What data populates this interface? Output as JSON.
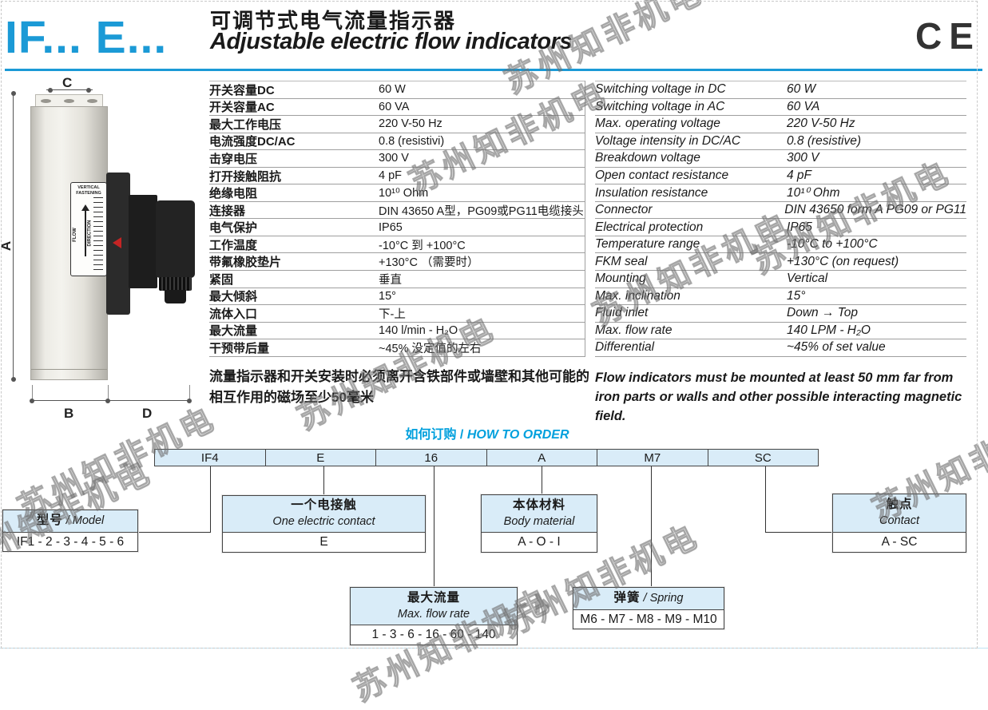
{
  "header": {
    "logo": "IF... E...",
    "title_cn": "可调节式电气流量指示器",
    "title_en": "Adjustable electric flow indicators",
    "ce": "CE"
  },
  "colors": {
    "accent_blue": "#1b9ad6",
    "order_title_blue": "#00a0dd",
    "box_fill_blue": "#d9ecf8"
  },
  "drawing": {
    "label_line1": "VERTICAL",
    "label_line2": "FASTENING",
    "flow": "FLOW",
    "direction": "DIRECTION",
    "dim_a": "A",
    "dim_b": "B",
    "dim_c": "C",
    "dim_d": "D"
  },
  "specs_cn": {
    "rows": [
      {
        "label": "开关容量DC",
        "value": "60 W"
      },
      {
        "label": "开关容量AC",
        "value": "60 VA"
      },
      {
        "label": "最大工作电压",
        "value": "220 V-50 Hz"
      },
      {
        "label": "电流强度DC/AC",
        "value": "0.8 (resistivi)"
      },
      {
        "label": "击穿电压",
        "value": "300 V"
      },
      {
        "label": "打开接触阻抗",
        "value": "4 pF"
      },
      {
        "label": "绝缘电阻",
        "value": "10¹⁰ Ohm"
      },
      {
        "label": "连接器",
        "value": "DIN 43650 A型，PG09或PG11电缆接头"
      },
      {
        "label": "电气保护",
        "value": "IP65"
      },
      {
        "label": "工作温度",
        "value": "-10°C 到 +100°C"
      },
      {
        "label": "带氟橡胶垫片",
        "value": "+130°C （需要时）"
      },
      {
        "label": "紧固",
        "value": "垂直"
      },
      {
        "label": "最大倾斜",
        "value": "15°"
      },
      {
        "label": "流体入口",
        "value": "下-上"
      },
      {
        "label": "最大流量",
        "value": "140 l/min - H₂O"
      },
      {
        "label": "干预带后量",
        "value": "~45% 没定值的左右"
      }
    ]
  },
  "specs_en": {
    "rows": [
      {
        "label": "Switching voltage in DC",
        "value": "60 W"
      },
      {
        "label": "Switching voltage in AC",
        "value": "60 VA"
      },
      {
        "label": "Max. operating voltage",
        "value": "220 V-50 Hz"
      },
      {
        "label": "Voltage intensity in DC/AC",
        "value": "0.8 (resistive)"
      },
      {
        "label": "Breakdown voltage",
        "value": "300 V"
      },
      {
        "label": "Open contact resistance",
        "value": "4 pF"
      },
      {
        "label": "Insulation resistance",
        "value": "10¹⁰ Ohm"
      },
      {
        "label": "Connector",
        "value": "DIN 43650 form A PG09 or PG11"
      },
      {
        "label": "Electrical protection",
        "value": "IP65"
      },
      {
        "label": "Temperature range",
        "value": "-10°C to +100°C"
      },
      {
        "label": "FKM seal",
        "value": "+130°C (on request)"
      },
      {
        "label": "Mounting",
        "value": "Vertical"
      },
      {
        "label": "Max. inclination",
        "value": "15°"
      },
      {
        "label": "Fluid inlet",
        "value": "Down → Top"
      },
      {
        "label": "Max. flow rate",
        "value": "140 LPM - H₂O"
      },
      {
        "label": "Differential",
        "value": "~45% of set value"
      }
    ]
  },
  "note_cn": "流量指示器和开关安装时必须离开含铁部件或墙壁和其他可能的相互作用的磁场至少50毫米",
  "note_en": "Flow indicators must be mounted at least 50 mm far from iron parts or walls and other possible interacting magnetic field.",
  "order": {
    "title_cn": "如何订购",
    "sep": " / ",
    "title_en": "HOW TO ORDER",
    "code_cells": [
      "IF4",
      "E",
      "16",
      "A",
      "M7",
      "SC"
    ],
    "boxes": {
      "model": {
        "header_cn": "型号",
        "header_en": "Model",
        "value": "IF1 - 2 - 3 - 4 - 5 - 6"
      },
      "electric_contact": {
        "header_cn": "一个电接触",
        "header_en": "One electric contact",
        "value": "E"
      },
      "body_material": {
        "header_cn": "本体材料",
        "header_en": "Body material",
        "value": "A - O - I"
      },
      "contact": {
        "header_cn": "触点",
        "header_en": "Contact",
        "value": "A - SC"
      },
      "flow_rate": {
        "header_cn": "最大流量",
        "header_en": "Max. flow rate",
        "value": "1 - 3 - 6 - 16 - 60 - 140"
      },
      "spring": {
        "header_cn": "弹簧",
        "header_en": "Spring",
        "value": "M6 - M7 - M8 - M9 - M10"
      }
    }
  },
  "watermark": "苏州知非机电"
}
